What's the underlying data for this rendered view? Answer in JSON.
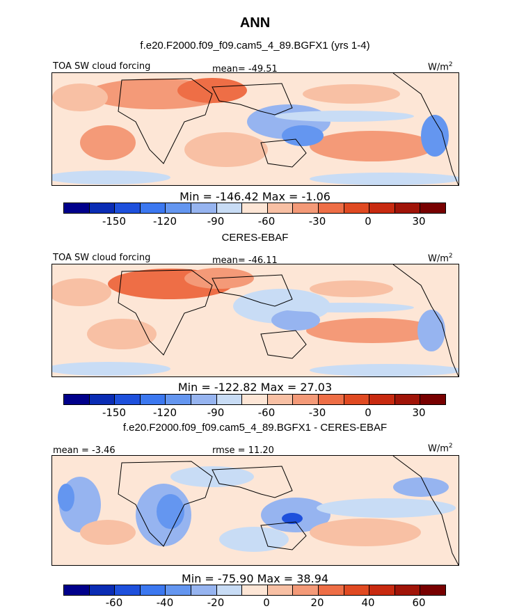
{
  "figure": {
    "season": "ANN",
    "panels": [
      {
        "title": "f.e20.F2000.f09_f09.cam5_4_89.BGFX1 (yrs 1-4)",
        "variable": "TOA SW cloud forcing",
        "stat": "mean= -49.51",
        "units": "W/m",
        "units_exp": "2",
        "minmax": "Min = -146.42 Max = -1.06",
        "ticks": [
          "-150",
          "-120",
          "-90",
          "-60",
          "-30",
          "0",
          "30"
        ]
      },
      {
        "title": "CERES-EBAF",
        "variable": "TOA SW cloud forcing",
        "stat": "mean= -46.11",
        "units": "W/m",
        "units_exp": "2",
        "minmax": "Min = -122.82 Max = 27.03",
        "ticks": [
          "-150",
          "-120",
          "-90",
          "-60",
          "-30",
          "0",
          "30"
        ]
      },
      {
        "title": "f.e20.F2000.f09_f09.cam5_4_89.BGFX1 - CERES-EBAF",
        "variable": "mean = -3.46",
        "stat": "rmse = 11.20",
        "units": "W/m",
        "units_exp": "2",
        "minmax": "Min = -75.90 Max = 38.94",
        "ticks": [
          "-60",
          "-40",
          "-20",
          "0",
          "20",
          "40",
          "60"
        ]
      }
    ],
    "colorbar_colors": [
      "#00008b",
      "#0a2cb4",
      "#1e50dc",
      "#3c78f0",
      "#6496f0",
      "#96b4f0",
      "#c8dcf5",
      "#fde6d6",
      "#f8c0a4",
      "#f49a78",
      "#ee6e46",
      "#e04a22",
      "#c82a10",
      "#a01408",
      "#780000"
    ]
  }
}
